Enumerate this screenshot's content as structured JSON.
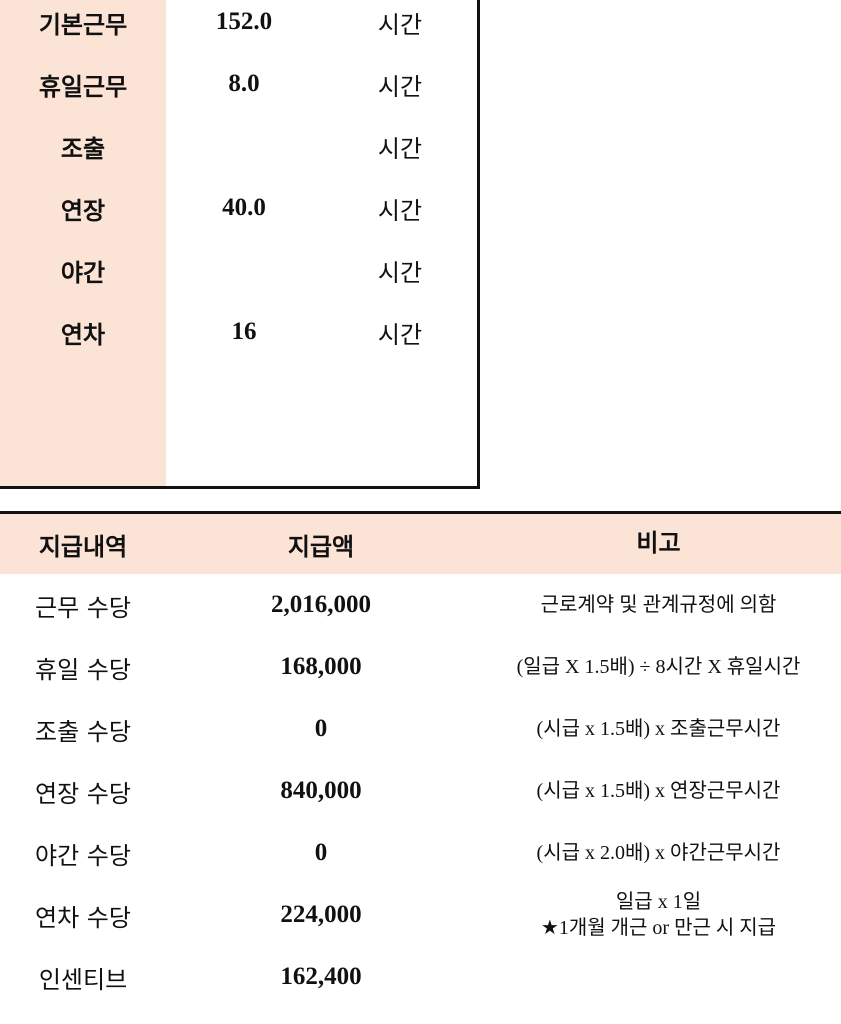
{
  "hours": {
    "unit": "시간",
    "rows": [
      {
        "label": "기본근무",
        "value": "152.0"
      },
      {
        "label": "휴일근무",
        "value": "8.0"
      },
      {
        "label": "조출",
        "value": ""
      },
      {
        "label": "연장",
        "value": "40.0"
      },
      {
        "label": "야간",
        "value": ""
      },
      {
        "label": "연차",
        "value": "16"
      }
    ]
  },
  "pay": {
    "headers": [
      "지급내역",
      "지급액",
      "비고"
    ],
    "rows": [
      {
        "item": "근무 수당",
        "amount": "2,016,000",
        "note": "근로계약 및 관계규정에 의함",
        "note2": ""
      },
      {
        "item": "휴일 수당",
        "amount": "168,000",
        "note": "(일급 X 1.5배) ÷ 8시간 X 휴일시간",
        "note2": ""
      },
      {
        "item": "조출 수당",
        "amount": "0",
        "note": "(시급 x 1.5배) x 조출근무시간",
        "note2": ""
      },
      {
        "item": "연장 수당",
        "amount": "840,000",
        "note": "(시급 x 1.5배) x 연장근무시간",
        "note2": ""
      },
      {
        "item": "야간 수당",
        "amount": "0",
        "note": "(시급 x 2.0배) x 야간근무시간",
        "note2": ""
      },
      {
        "item": "연차 수당",
        "amount": "224,000",
        "note": "일급 x 1일",
        "note2": "★1개월 개근 or 만근 시 지급"
      },
      {
        "item": "인센티브",
        "amount": "162,400",
        "note": "",
        "note2": ""
      }
    ]
  },
  "colors": {
    "header_bg": "#fbe3d6",
    "border": "#111111"
  }
}
